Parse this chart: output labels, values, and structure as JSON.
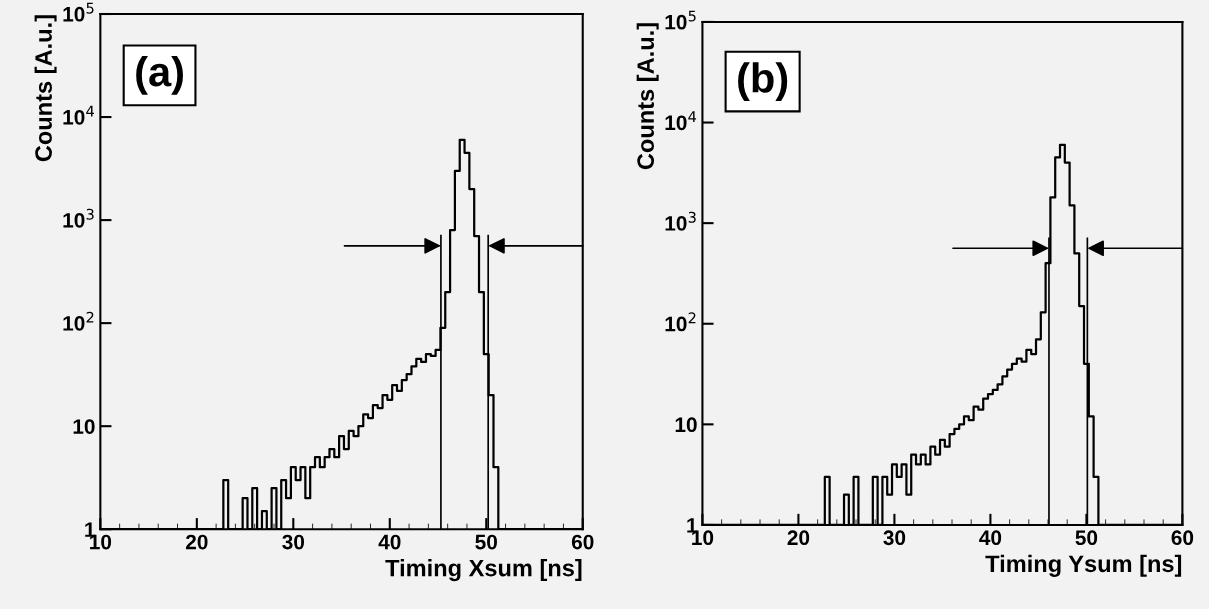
{
  "chart_data": [
    {
      "type": "step",
      "title": "(a)",
      "xlabel": "Timing Xsum [ns]",
      "ylabel": "Counts [A.u.]",
      "log": "y",
      "xlim": [
        10,
        60
      ],
      "xticks": [
        10,
        20,
        30,
        40,
        50,
        60
      ],
      "ylim": [
        1,
        100000
      ],
      "yticks": [
        1,
        10,
        {
          "value": 100,
          "label": "10$^{2}$"
        },
        {
          "value": 1000,
          "label": "10$^{3}$"
        },
        {
          "value": 10000,
          "label": "10$^{4}$"
        },
        {
          "value": 100000,
          "label": "10$^{5}$"
        }
      ],
      "grid": false,
      "legend": false,
      "x": [
        10,
        10.5,
        11,
        11.5,
        12,
        12.5,
        13,
        13.5,
        14,
        14.5,
        15,
        15.5,
        16,
        16.5,
        17,
        17.5,
        18,
        18.5,
        19,
        19.5,
        20,
        20.5,
        21,
        21.5,
        22,
        22.5,
        23,
        23.5,
        24,
        24.5,
        25,
        25.5,
        26,
        26.5,
        27,
        27.5,
        28,
        28.5,
        29,
        29.5,
        30,
        30.5,
        31,
        31.5,
        32,
        32.5,
        33,
        33.5,
        34,
        34.5,
        35,
        35.5,
        36,
        36.5,
        37,
        37.5,
        38,
        38.5,
        39,
        39.5,
        40,
        40.5,
        41,
        41.5,
        42,
        42.5,
        43,
        43.5,
        44,
        44.5,
        45,
        45.5,
        46,
        46.5,
        47,
        47.5,
        48,
        48.5,
        49,
        49.5,
        50,
        50.5,
        51,
        51.5,
        52,
        52.5,
        53,
        53.5,
        54,
        54.5,
        55,
        55.5,
        56,
        56.5,
        57,
        57.5,
        58,
        58.5,
        59,
        59.5,
        60
      ],
      "series": [
        {
          "color": "#000000",
          "values": [
            1,
            1,
            1,
            1,
            1,
            1,
            1,
            1,
            1,
            1,
            1,
            1,
            1,
            1,
            1,
            1,
            1,
            1,
            1,
            1,
            1,
            1,
            1,
            1,
            1,
            1,
            3,
            1,
            1,
            1,
            2,
            1,
            2.5,
            1,
            1.5,
            1,
            2.5,
            1,
            3,
            2,
            4,
            3,
            4,
            2,
            4,
            5,
            4,
            5,
            6,
            5,
            8,
            6,
            9,
            8,
            10,
            13,
            12,
            16,
            15,
            20,
            18,
            25,
            22,
            28,
            32,
            38,
            45,
            42,
            50,
            48,
            55,
            90,
            200,
            800,
            3000,
            6000,
            4500,
            2000,
            700,
            200,
            50,
            20,
            4,
            1,
            1,
            1,
            1,
            1,
            1,
            1,
            1,
            1,
            1,
            1,
            1,
            1,
            1,
            1,
            1,
            1,
            1
          ]
        }
      ],
      "ref_lines": [
        {
          "axis": "x",
          "value": 45.3
        },
        {
          "axis": "x",
          "value": 50.2
        }
      ]
    },
    {
      "type": "step",
      "title": "(b)",
      "xlabel": "Timing Ysum [ns]",
      "ylabel": "Counts [A.u.]",
      "log": "y",
      "xlim": [
        10,
        60
      ],
      "xticks": [
        10,
        20,
        30,
        40,
        50,
        60
      ],
      "ylim": [
        1,
        100000
      ],
      "yticks": [
        1,
        10,
        {
          "value": 100,
          "label": "10$^{2}$"
        },
        {
          "value": 1000,
          "label": "10$^{3}$"
        },
        {
          "value": 10000,
          "label": "10$^{4}$"
        },
        {
          "value": 100000,
          "label": "10$^{5}$"
        }
      ],
      "grid": false,
      "legend": false,
      "x": [
        10,
        10.5,
        11,
        11.5,
        12,
        12.5,
        13,
        13.5,
        14,
        14.5,
        15,
        15.5,
        16,
        16.5,
        17,
        17.5,
        18,
        18.5,
        19,
        19.5,
        20,
        20.5,
        21,
        21.5,
        22,
        22.5,
        23,
        23.5,
        24,
        24.5,
        25,
        25.5,
        26,
        26.5,
        27,
        27.5,
        28,
        28.5,
        29,
        29.5,
        30,
        30.5,
        31,
        31.5,
        32,
        32.5,
        33,
        33.5,
        34,
        34.5,
        35,
        35.5,
        36,
        36.5,
        37,
        37.5,
        38,
        38.5,
        39,
        39.5,
        40,
        40.5,
        41,
        41.5,
        42,
        42.5,
        43,
        43.5,
        44,
        44.5,
        45,
        45.5,
        46,
        46.5,
        47,
        47.5,
        48,
        48.5,
        49,
        49.5,
        50,
        50.5,
        51,
        51.5,
        52,
        52.5,
        53,
        53.5,
        54,
        54.5,
        55,
        55.5,
        56,
        56.5,
        57,
        57.5,
        58,
        58.5,
        59,
        59.5,
        60
      ],
      "series": [
        {
          "color": "#000000",
          "values": [
            1,
            1,
            1,
            1,
            1,
            1,
            1,
            1,
            1,
            1,
            1,
            1,
            1,
            1,
            1,
            1,
            1,
            1,
            1,
            1,
            1,
            1,
            1,
            1,
            1,
            1,
            3,
            1,
            1,
            1,
            2,
            1,
            3,
            1,
            1,
            1,
            3,
            1,
            3,
            2,
            4,
            3,
            4,
            2,
            5,
            4,
            5,
            4,
            6,
            5,
            7,
            6,
            8,
            9,
            10,
            12,
            11,
            15,
            14,
            18,
            20,
            22,
            25,
            30,
            35,
            40,
            45,
            42,
            55,
            50,
            70,
            130,
            400,
            1800,
            4500,
            6000,
            4000,
            1500,
            500,
            150,
            40,
            12,
            3,
            1,
            1,
            1,
            1,
            1,
            1,
            1,
            1,
            1,
            1,
            1,
            1,
            1,
            1,
            1,
            1,
            1,
            1
          ]
        }
      ],
      "ref_lines": [
        {
          "axis": "x",
          "value": 46.1
        },
        {
          "axis": "x",
          "value": 50.1
        }
      ]
    }
  ]
}
